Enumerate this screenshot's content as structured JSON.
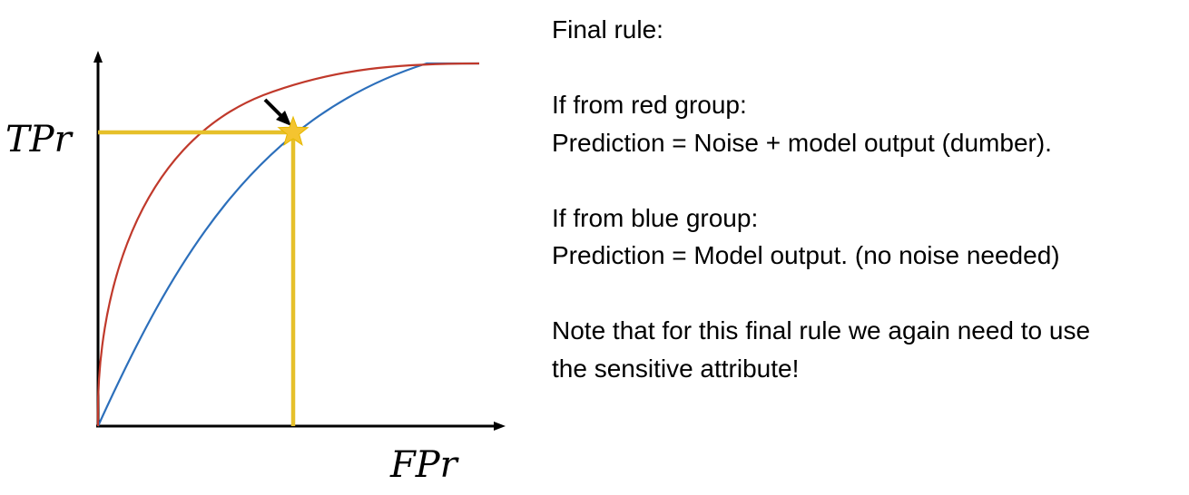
{
  "axes": {
    "x_label": "FPr",
    "y_label": "TPr"
  },
  "curves": {
    "red": {
      "color": "#c0392b"
    },
    "blue": {
      "color": "#2c6fbb"
    },
    "threshold_color": "#e6c02a",
    "pointer_color": "#000000",
    "star_color": "#f4c430"
  },
  "notes": {
    "title": "Final rule:",
    "red_header": "If from red group:",
    "red_rule": "Prediction = Noise + model output (dumber).",
    "blue_header": "If from blue group:",
    "blue_rule": "Prediction = Model output. (no noise needed)",
    "note_line1": "Note that for this final rule we again need to use",
    "note_line2": "the sensitive attribute!"
  }
}
